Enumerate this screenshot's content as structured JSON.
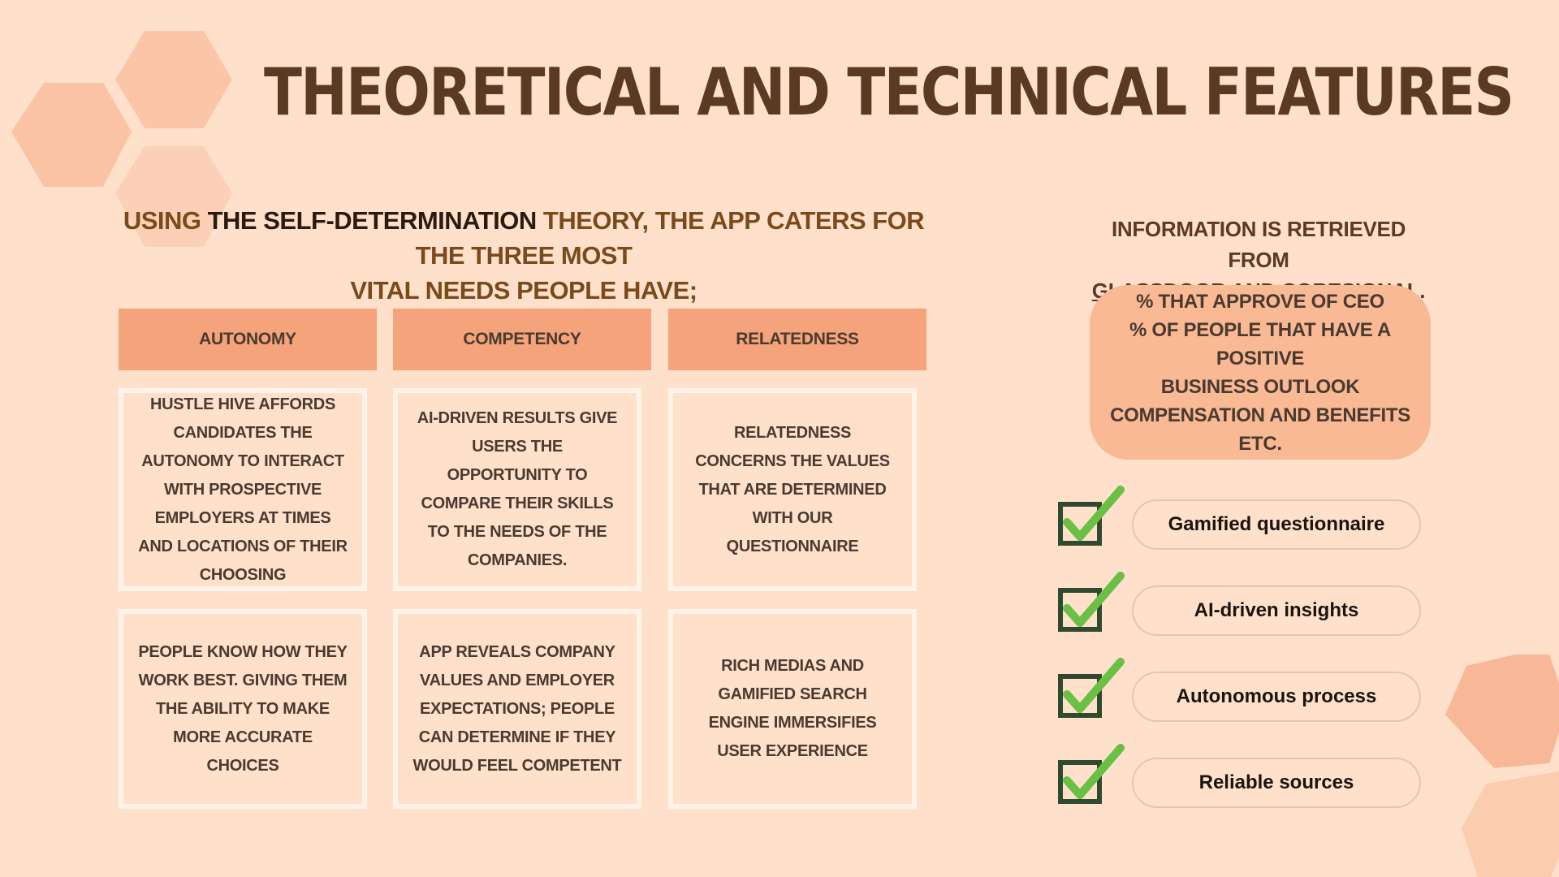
{
  "title": "THEORETICAL AND TECHNICAL FEATURES",
  "intro": {
    "part1": "USING ",
    "part2": "THE SELF-DETERMINATION",
    "part3": " THEORY, THE APP CATERS FOR THE THREE MOST",
    "line2": "VITAL NEEDS PEOPLE HAVE;"
  },
  "columns": [
    "AUTONOMY",
    "COMPETENCY",
    "RELATEDNESS"
  ],
  "row1": [
    "HUSTLE HIVE AFFORDS CANDIDATES THE AUTONOMY TO INTERACT WITH PROSPECTIVE EMPLOYERS AT TIMES AND LOCATIONS OF THEIR CHOOSING",
    "AI-DRIVEN RESULTS GIVE USERS THE OPPORTUNITY TO COMPARE THEIR SKILLS TO THE NEEDS OF THE COMPANIES.",
    "RELATEDNESS CONCERNS THE VALUES THAT ARE DETERMINED WITH OUR QUESTIONNAIRE"
  ],
  "row2": [
    "PEOPLE KNOW HOW THEY WORK BEST. GIVING THEM THE ABILITY TO MAKE MORE ACCURATE CHOICES",
    "APP REVEALS COMPANY VALUES AND EMPLOYER EXPECTATIONS; PEOPLE CAN DETERMINE IF THEY WOULD FEEL COMPETENT",
    "RICH MEDIAS AND GAMIFIED SEARCH ENGINE IMMERSIFIES USER EXPERIENCE"
  ],
  "info": {
    "line1": "INFORMATION IS RETRIEVED FROM",
    "source1": "GLASSDOOR",
    "and": " AND ",
    "source2": "CORESIGNAL",
    "period": "."
  },
  "metrics": [
    "% THAT APPROVE OF CEO",
    "% OF PEOPLE THAT HAVE A POSITIVE",
    "BUSINESS OUTLOOK",
    "COMPENSATION AND BENEFITS",
    "ETC."
  ],
  "features": [
    "Gamified questionnaire",
    "AI-driven insights",
    "Autonomous process",
    "Reliable sources"
  ],
  "colors": {
    "background": "#ffe0cb",
    "header": "#f4a37a",
    "title": "#5b3a22",
    "check_box": "#2f4a2e",
    "check_mark": "#6abf45"
  }
}
